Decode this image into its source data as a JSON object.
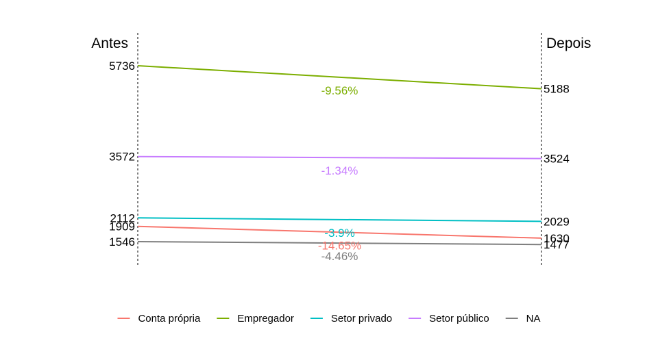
{
  "chart_data": {
    "type": "slope",
    "left_label": "Antes",
    "right_label": "Depois",
    "ylim": [
      1300,
      6000
    ],
    "grid": false,
    "legend_position": "bottom",
    "series": [
      {
        "name": "Conta própria",
        "color": "#F8766D",
        "before": 1909,
        "before_label": "1909",
        "after": 1630,
        "after_label": "1630",
        "change": "-14.65%"
      },
      {
        "name": "Empregador",
        "color": "#7CAE00",
        "before": 5736,
        "before_label": "5736",
        "after": 5188,
        "after_label": "5188",
        "change": "-9.56%"
      },
      {
        "name": "Setor privado",
        "color": "#00BFC4",
        "before": 2112,
        "before_label": "2112",
        "after": 2029,
        "after_label": "2029",
        "change": "-3.9%"
      },
      {
        "name": "Setor público",
        "color": "#C77CFF",
        "before": 3572,
        "before_label": "3572",
        "after": 3524,
        "after_label": "3524",
        "change": "-1.34%"
      },
      {
        "name": "NA",
        "color": "#7F7F7F",
        "before": 1546,
        "before_label": "1546",
        "after": 1477,
        "after_label": "1477",
        "change": "-4.46%"
      }
    ]
  }
}
